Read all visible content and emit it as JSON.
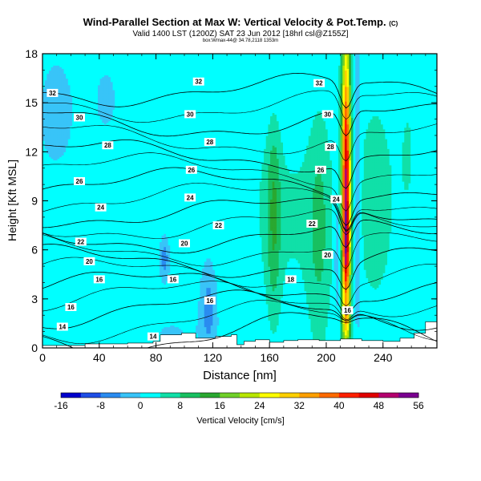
{
  "header": {
    "title": "Wind-Parallel Section at Max W: Vertical Velocity & Pot.Temp.",
    "copyright": "(C)",
    "valid_line": "Valid 1400 LST (1200Z) SAT 23 Jun 2012 [18hrl csl@Z155Z]",
    "sub_line": "box:Wmax-44@ 34.78,2118 1353m"
  },
  "chart_data": {
    "type": "heatmap",
    "xlabel": "Distance [nm]",
    "ylabel": "Height [Kft MSL]",
    "xlim": [
      0,
      278
    ],
    "ylim": [
      0,
      18
    ],
    "x_ticks": [
      0,
      40,
      80,
      120,
      160,
      200,
      240
    ],
    "y_ticks": [
      0,
      3,
      6,
      9,
      12,
      15,
      18
    ],
    "colorbar": {
      "label": "Vertical Velocity [cm/s]",
      "ticks": [
        -16,
        -8,
        0,
        8,
        16,
        24,
        32,
        40,
        48,
        56
      ],
      "colors": [
        "#0000cc",
        "#1e4ee6",
        "#2a8cf0",
        "#38c4f8",
        "#00ffff",
        "#10e0a8",
        "#18c060",
        "#2aa830",
        "#70d028",
        "#b8e600",
        "#ffff00",
        "#ffd000",
        "#ffa000",
        "#ff6a00",
        "#ff2000",
        "#e00000",
        "#b4006e",
        "#7a0090"
      ]
    },
    "theta_contours": [
      {
        "label": "14",
        "v": 14,
        "a": 0.9,
        "b": 1.2
      },
      {
        "label": "16",
        "v": 16,
        "a": 2.3,
        "b": 1.0
      },
      {
        "label": "18",
        "v": 18,
        "a": 3.8,
        "b": 0.8
      },
      {
        "label": "20",
        "v": 20,
        "a": 5.3,
        "b": 0.8
      },
      {
        "label": "22",
        "v": 22,
        "a": 6.8,
        "b": 0.8
      },
      {
        "label": "24",
        "v": 24,
        "a": 8.3,
        "b": 0.8
      },
      {
        "label": "26",
        "v": 26,
        "a": 10.0,
        "b": 0.8
      },
      {
        "label": "28",
        "v": 28,
        "a": 11.8,
        "b": 0.8
      },
      {
        "label": "30",
        "v": 30,
        "a": 13.9,
        "b": 0.9
      },
      {
        "label": "32",
        "v": 32,
        "a": 15.8,
        "b": 0.8
      }
    ],
    "contour_labels": [
      {
        "text": "14",
        "x": 14,
        "y": 1.3
      },
      {
        "text": "14",
        "x": 78,
        "y": 0.7
      },
      {
        "text": "16",
        "x": 20,
        "y": 2.5
      },
      {
        "text": "16",
        "x": 40,
        "y": 4.2
      },
      {
        "text": "16",
        "x": 92,
        "y": 4.2
      },
      {
        "text": "16",
        "x": 118,
        "y": 2.9
      },
      {
        "text": "16",
        "x": 215,
        "y": 2.3
      },
      {
        "text": "18",
        "x": 175,
        "y": 4.2
      },
      {
        "text": "20",
        "x": 33,
        "y": 5.3
      },
      {
        "text": "20",
        "x": 100,
        "y": 6.4
      },
      {
        "text": "20",
        "x": 201,
        "y": 5.7
      },
      {
        "text": "22",
        "x": 27,
        "y": 6.5
      },
      {
        "text": "22",
        "x": 124,
        "y": 7.5
      },
      {
        "text": "22",
        "x": 190,
        "y": 7.6
      },
      {
        "text": "24",
        "x": 41,
        "y": 8.6
      },
      {
        "text": "24",
        "x": 104,
        "y": 9.2
      },
      {
        "text": "24",
        "x": 207,
        "y": 9.1
      },
      {
        "text": "26",
        "x": 26,
        "y": 10.2
      },
      {
        "text": "26",
        "x": 105,
        "y": 10.9
      },
      {
        "text": "26",
        "x": 196,
        "y": 10.9
      },
      {
        "text": "28",
        "x": 46,
        "y": 12.4
      },
      {
        "text": "28",
        "x": 118,
        "y": 12.6
      },
      {
        "text": "28",
        "x": 203,
        "y": 12.3
      },
      {
        "text": "30",
        "x": 26,
        "y": 14.1
      },
      {
        "text": "30",
        "x": 104,
        "y": 14.3
      },
      {
        "text": "30",
        "x": 201,
        "y": 14.3
      },
      {
        "text": "32",
        "x": 7,
        "y": 15.6
      },
      {
        "text": "32",
        "x": 110,
        "y": 16.3
      },
      {
        "text": "32",
        "x": 195,
        "y": 16.2
      }
    ]
  }
}
